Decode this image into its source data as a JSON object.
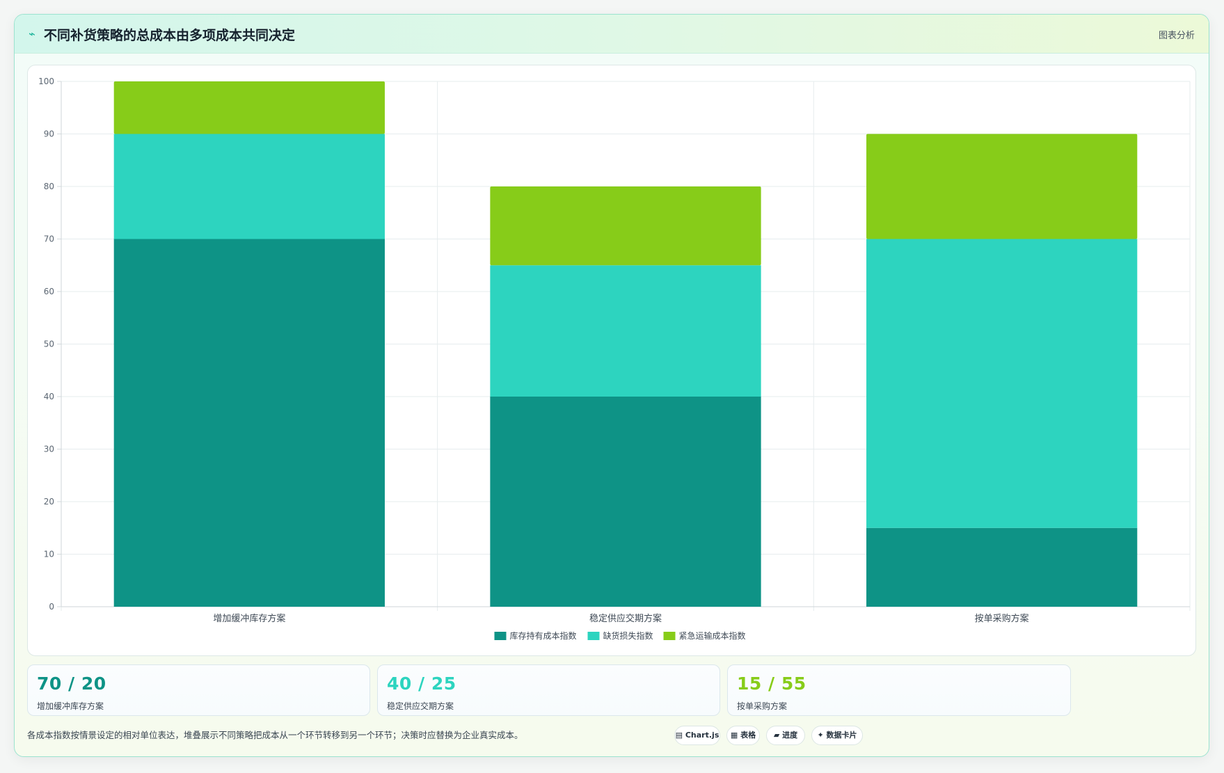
{
  "header": {
    "icon": "line-chart-icon",
    "title": "不同补货策略的总成本由多项成本共同决定",
    "right_label": "图表分析"
  },
  "chart_data": {
    "type": "bar",
    "stacked": true,
    "categories": [
      "增加缓冲库存方案",
      "稳定供应交期方案",
      "按单采购方案"
    ],
    "series": [
      {
        "name": "库存持有成本指数",
        "color": "#0e9386",
        "values": [
          70,
          40,
          15
        ]
      },
      {
        "name": "缺货损失指数",
        "color": "#2dd4bf",
        "values": [
          20,
          25,
          55
        ]
      },
      {
        "name": "紧急运输成本指数",
        "color": "#87cc19",
        "values": [
          10,
          15,
          20
        ]
      }
    ],
    "ylim": [
      0,
      100
    ],
    "yticks": [
      0,
      10,
      20,
      30,
      40,
      50,
      60,
      70,
      80,
      90,
      100
    ],
    "grid": true,
    "legend_position": "bottom"
  },
  "stats": [
    {
      "value": "70 / 20",
      "label": "增加缓冲库存方案",
      "color": "#0e9386"
    },
    {
      "value": "40 / 25",
      "label": "稳定供应交期方案",
      "color": "#2dd4bf"
    },
    {
      "value": "15 / 55",
      "label": "按单采购方案",
      "color": "#87cc19"
    }
  ],
  "footnote": "各成本指数按情景设定的相对单位表达，堆叠展示不同策略把成本从一个环节转移到另一个环节；决策时应替换为企业真实成本。",
  "chips": [
    {
      "icon": "chart-icon",
      "glyph": "▤",
      "label": "Chart.js"
    },
    {
      "icon": "table-icon",
      "glyph": "▦",
      "label": "表格"
    },
    {
      "icon": "progress-icon",
      "glyph": "▰",
      "label": "进度"
    },
    {
      "icon": "sparkle-icon",
      "glyph": "✦",
      "label": "数据卡片"
    }
  ]
}
